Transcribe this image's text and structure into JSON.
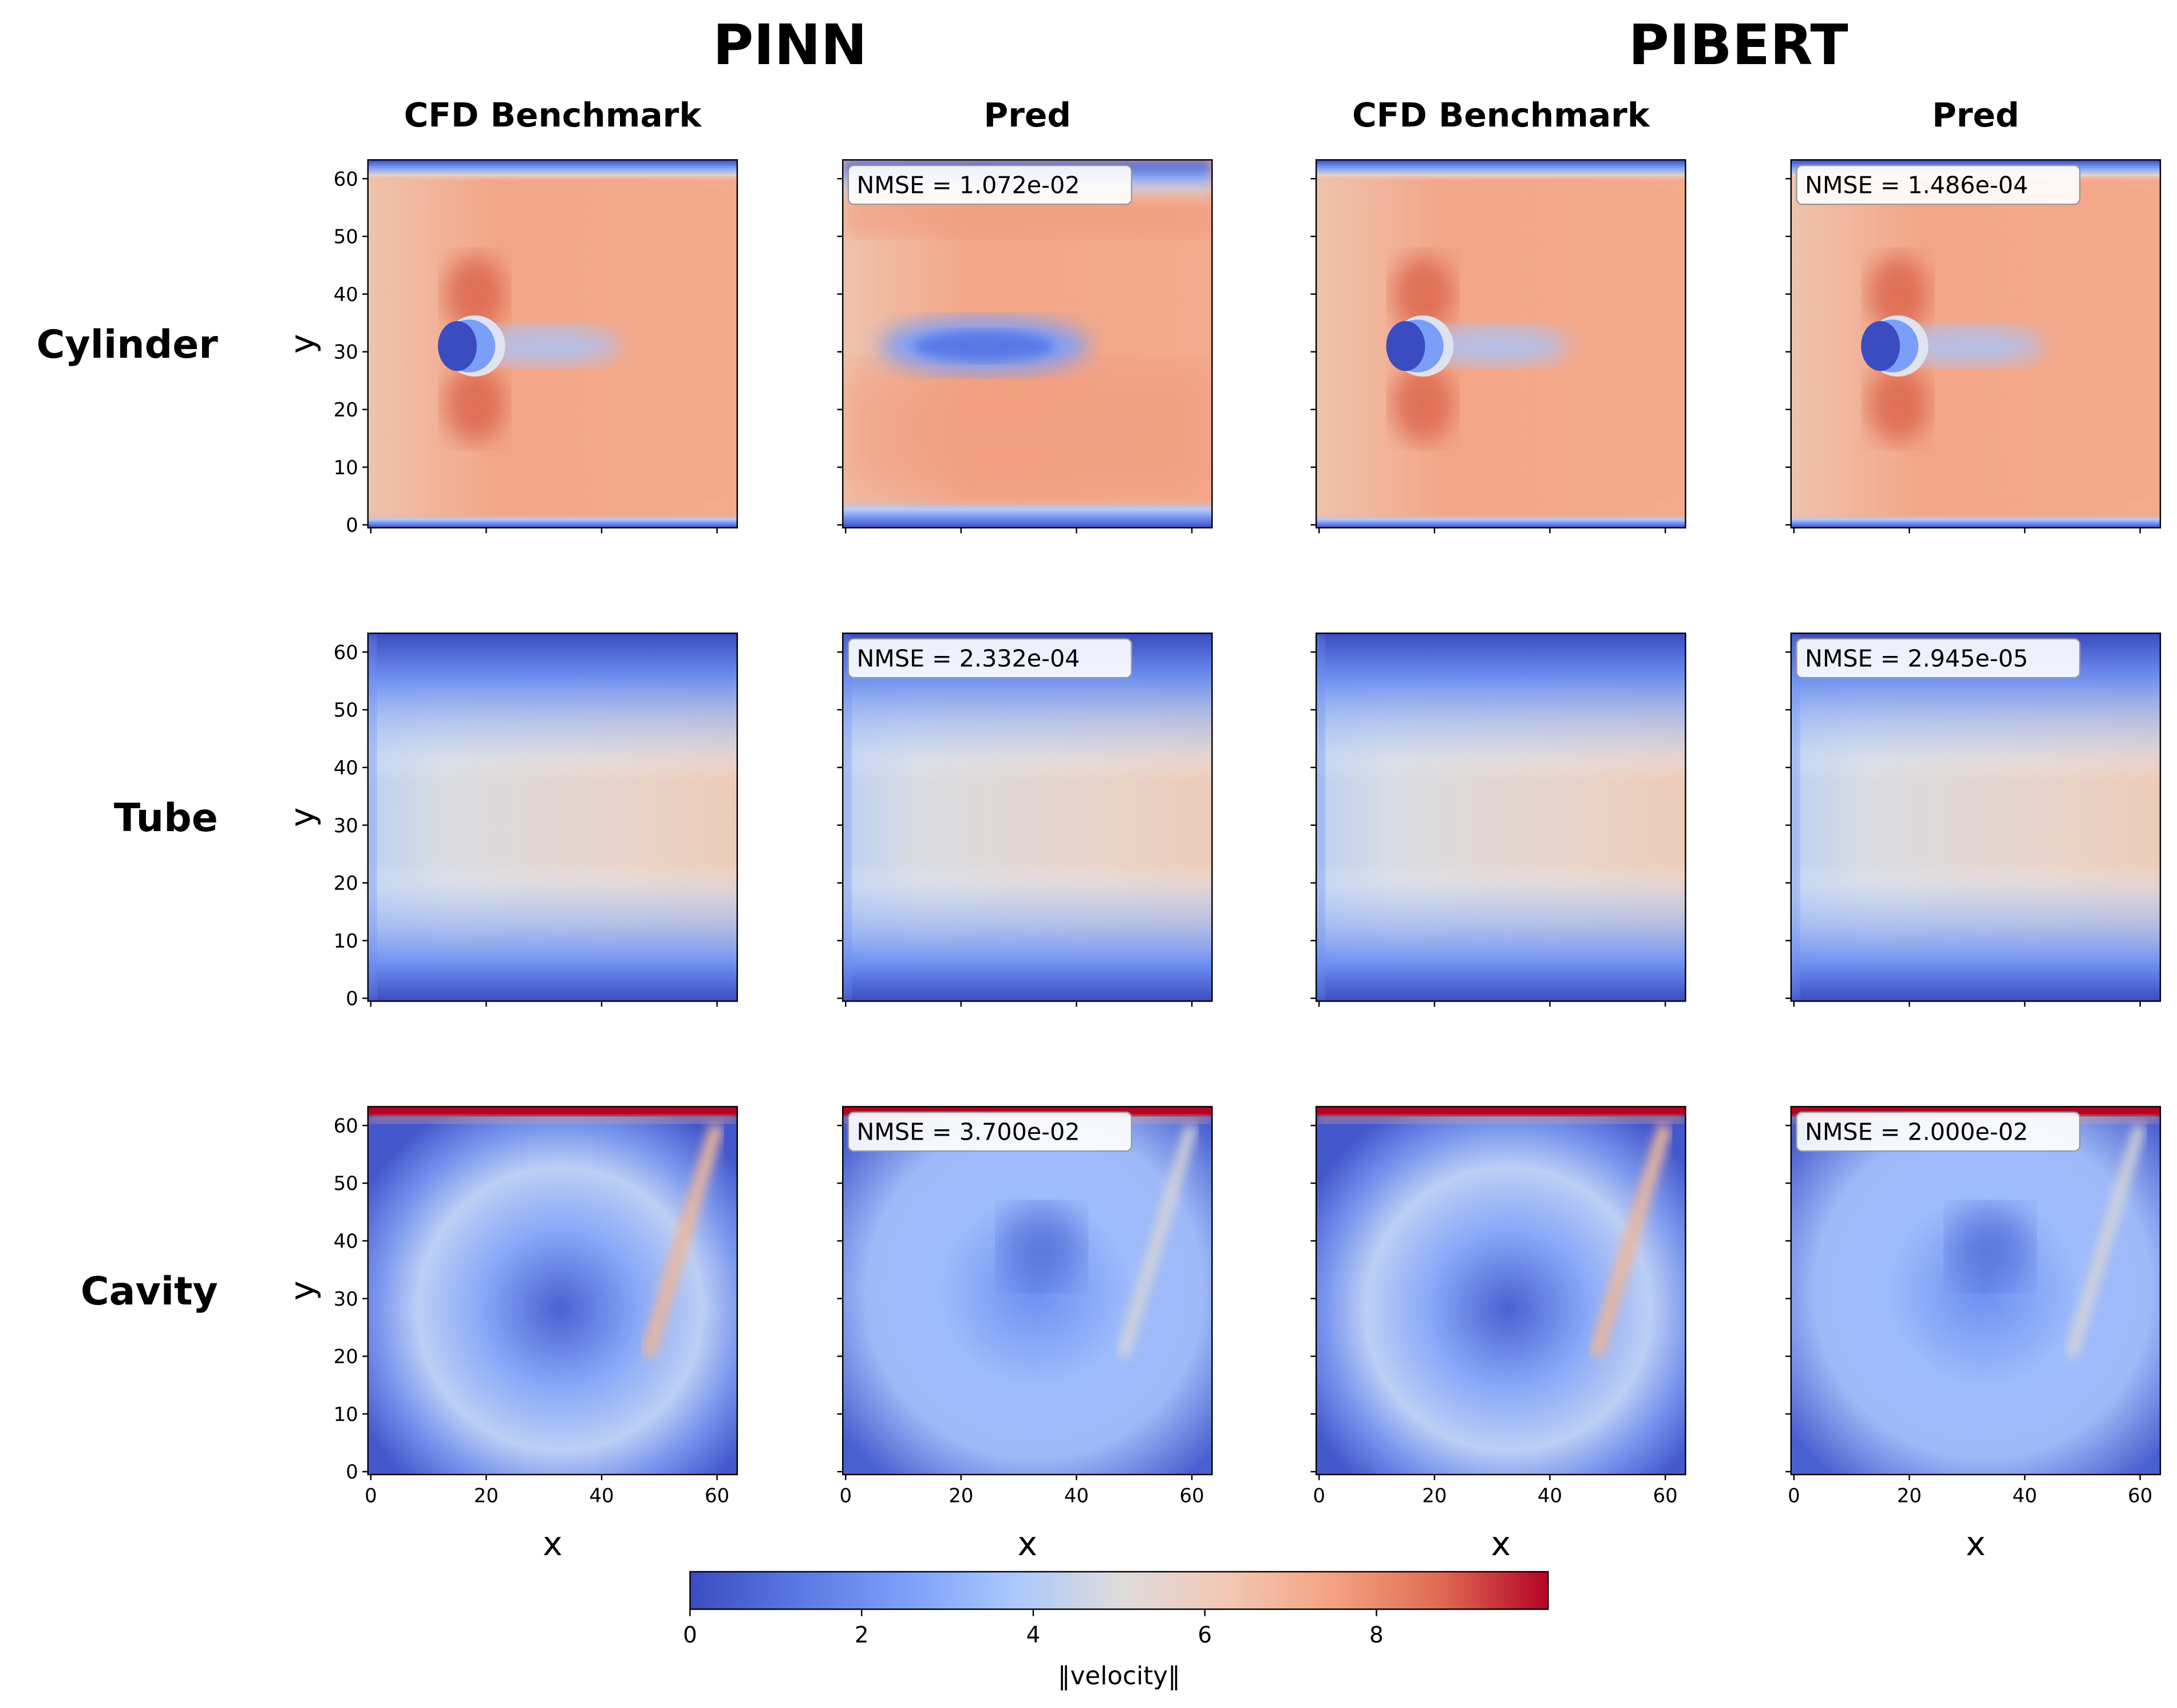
{
  "chart_data": {
    "type": "heatmap",
    "groups": [
      "PINN",
      "PIBERT"
    ],
    "column_titles": [
      "CFD Benchmark",
      "Pred",
      "CFD Benchmark",
      "Pred"
    ],
    "row_labels": [
      "Cylinder",
      "Tube",
      "Cavity"
    ],
    "xlabel": "x",
    "ylabel": "y",
    "x_ticks": [
      "0",
      "20",
      "40",
      "60"
    ],
    "y_ticks": [
      "0",
      "10",
      "20",
      "30",
      "40",
      "50",
      "60"
    ],
    "xlim": [
      0,
      63
    ],
    "ylim": [
      0,
      63
    ],
    "nmse": [
      [
        null,
        "NMSE = 1.072e-02",
        null,
        "NMSE = 1.486e-04"
      ],
      [
        null,
        "NMSE = 2.332e-04",
        null,
        "NMSE = 2.945e-05"
      ],
      [
        null,
        "NMSE = 3.700e-02",
        null,
        "NMSE = 2.000e-02"
      ]
    ],
    "colorbar": {
      "label": "‖velocity‖",
      "colormap": "coolwarm",
      "range": [
        0,
        10
      ],
      "ticks": [
        "0",
        "2",
        "4",
        "6",
        "8"
      ],
      "colors": [
        "#3b4cc0",
        "#5a78e4",
        "#7b9ff9",
        "#aac7fd",
        "#dddcdc",
        "#f2c8b4",
        "#f4a281",
        "#e06a52",
        "#b40426"
      ]
    }
  }
}
